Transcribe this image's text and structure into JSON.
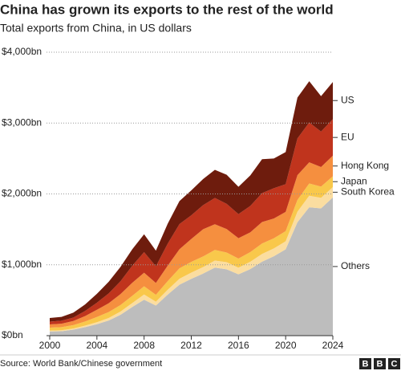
{
  "chart_data": {
    "type": "stacked-area",
    "title": "China has grown its exports to the rest of the world",
    "subtitle": "Total exports from China, in US dollars",
    "source": "Source: World Bank/Chinese government",
    "logo": [
      "B",
      "B",
      "C"
    ],
    "x": [
      2000,
      2001,
      2002,
      2003,
      2004,
      2005,
      2006,
      2007,
      2008,
      2009,
      2010,
      2011,
      2012,
      2013,
      2014,
      2015,
      2016,
      2017,
      2018,
      2019,
      2020,
      2021,
      2022,
      2023,
      2024
    ],
    "xlim": [
      2000,
      2024
    ],
    "xticks": [
      2000,
      2004,
      2008,
      2012,
      2016,
      2020,
      2024
    ],
    "ylim": [
      0,
      4000
    ],
    "yticks": [
      {
        "value": 0,
        "label": "$0bn"
      },
      {
        "value": 1000,
        "label": "$1,000bn"
      },
      {
        "value": 2000,
        "label": "$2,000bn"
      },
      {
        "value": 3000,
        "label": "$3,000bn"
      },
      {
        "value": 4000,
        "label": "$4,000bn"
      }
    ],
    "grid": true,
    "series": [
      {
        "name": "Others",
        "color": "#bdbdbd",
        "values": [
          60,
          63,
          85,
          121,
          162,
          214,
          295,
          405,
          507,
          425,
          579,
          720,
          801,
          876,
          960,
          936,
          865,
          939,
          1044,
          1120,
          1218,
          1600,
          1812,
          1796,
          1951
        ]
      },
      {
        "name": "South Korea",
        "color": "#fbdda0",
        "values": [
          11,
          13,
          16,
          20,
          28,
          35,
          45,
          56,
          74,
          54,
          69,
          83,
          88,
          91,
          100,
          101,
          94,
          103,
          109,
          111,
          113,
          149,
          163,
          149,
          146
        ]
      },
      {
        "name": "Japan",
        "color": "#f9c84b",
        "values": [
          42,
          45,
          48,
          59,
          74,
          84,
          92,
          102,
          116,
          98,
          121,
          148,
          152,
          150,
          149,
          136,
          129,
          137,
          147,
          143,
          143,
          166,
          173,
          158,
          152
        ]
      },
      {
        "name": "Hong Kong",
        "color": "#f58f3f",
        "values": [
          45,
          47,
          58,
          76,
          101,
          124,
          155,
          184,
          191,
          166,
          218,
          268,
          323,
          385,
          363,
          331,
          288,
          279,
          303,
          279,
          273,
          350,
          298,
          276,
          290
        ]
      },
      {
        "name": "EU",
        "color": "#c0341d",
        "values": [
          40,
          43,
          48,
          72,
          100,
          140,
          180,
          240,
          290,
          236,
          310,
          356,
          334,
          339,
          371,
          356,
          339,
          372,
          409,
          428,
          391,
          518,
          562,
          501,
          516
        ]
      },
      {
        "name": "US",
        "color": "#6e1c0d",
        "values": [
          52,
          54,
          70,
          92,
          125,
          163,
          203,
          233,
          252,
          221,
          283,
          325,
          352,
          369,
          397,
          410,
          385,
          430,
          478,
          419,
          452,
          577,
          582,
          500,
          525
        ]
      }
    ]
  }
}
